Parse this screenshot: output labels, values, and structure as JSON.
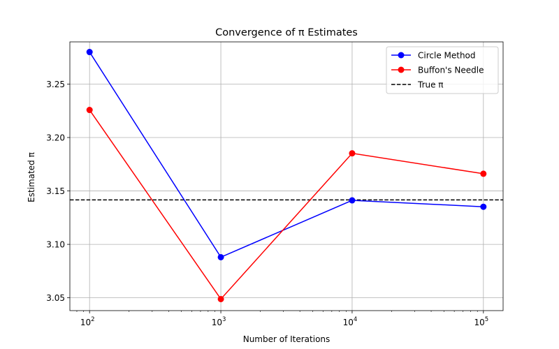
{
  "chart_data": {
    "type": "line",
    "title": "Convergence of π Estimates",
    "xlabel": "Number of Iterations",
    "ylabel": "Estimated π",
    "x_scale": "log",
    "x": [
      100,
      1000,
      10000,
      100000
    ],
    "x_tick_labels": [
      {
        "base": "10",
        "exp": "2"
      },
      {
        "base": "10",
        "exp": "3"
      },
      {
        "base": "10",
        "exp": "4"
      },
      {
        "base": "10",
        "exp": "5"
      }
    ],
    "y_ticks": [
      "3.05",
      "3.10",
      "3.15",
      "3.20",
      "3.25"
    ],
    "ylim": [
      3.038,
      3.2895
    ],
    "grid": true,
    "legend_position": "top-right",
    "series": [
      {
        "name": "Circle Method",
        "color": "#0000ff",
        "marker": "circle",
        "values": [
          3.28,
          3.088,
          3.1412,
          3.1352
        ]
      },
      {
        "name": "Buffon's Needle",
        "color": "#ff0000",
        "marker": "circle",
        "values": [
          3.2258,
          3.0488,
          3.1852,
          3.1661
        ]
      }
    ],
    "reference_line": {
      "name": "True π",
      "value": 3.14159,
      "color": "#000000",
      "style": "dashed"
    }
  }
}
